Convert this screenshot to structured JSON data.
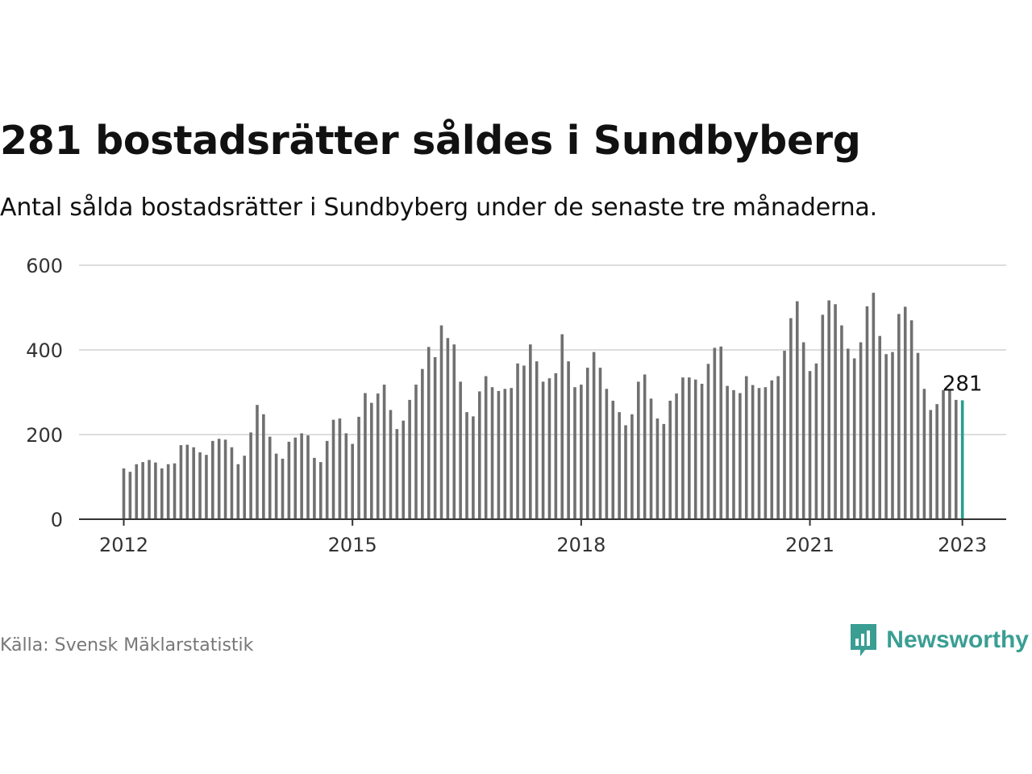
{
  "title": "281 bostadsrätter såldes i Sundbyberg",
  "subtitle": "Antal sålda bostadsrätter i Sundbyberg under de senaste tre månaderna.",
  "source": "Källa: Svensk Mäklarstatistik",
  "brand": {
    "name": "Newsworthy",
    "icon": "newsworthy-logo-icon",
    "color": "#3a9e93"
  },
  "colors": {
    "bar": "#707070",
    "highlight": "#2a9d8f",
    "grid": "#dddddd",
    "axis": "#333333"
  },
  "chart_data": {
    "type": "bar",
    "title": "281 bostadsrätter såldes i Sundbyberg",
    "subtitle": "Antal sålda bostadsrätter i Sundbyberg under de senaste tre månaderna.",
    "xlabel": "",
    "ylabel": "",
    "x_start": "2012-01",
    "x_ticks": [
      "2012",
      "2015",
      "2018",
      "2021",
      "2023"
    ],
    "y_ticks": [
      0,
      200,
      400,
      600
    ],
    "ylim": [
      0,
      600
    ],
    "grid": true,
    "highlight_last": true,
    "last_label": "281",
    "values": [
      120,
      112,
      130,
      135,
      140,
      134,
      120,
      130,
      132,
      175,
      176,
      170,
      158,
      152,
      185,
      190,
      188,
      170,
      130,
      150,
      205,
      270,
      248,
      195,
      155,
      143,
      183,
      193,
      203,
      198,
      145,
      135,
      185,
      235,
      238,
      203,
      178,
      242,
      298,
      275,
      297,
      318,
      258,
      213,
      233,
      282,
      318,
      355,
      407,
      383,
      458,
      428,
      413,
      325,
      253,
      243,
      302,
      338,
      312,
      303,
      308,
      310,
      368,
      363,
      413,
      373,
      325,
      333,
      345,
      437,
      373,
      312,
      318,
      358,
      395,
      358,
      308,
      280,
      253,
      222,
      248,
      325,
      342,
      285,
      238,
      225,
      280,
      297,
      335,
      335,
      330,
      320,
      367,
      405,
      408,
      315,
      305,
      298,
      338,
      317,
      310,
      312,
      328,
      338,
      398,
      475,
      515,
      418,
      350,
      368,
      483,
      517,
      508,
      458,
      403,
      380,
      418,
      503,
      535,
      433,
      390,
      395,
      485,
      502,
      470,
      393,
      308,
      258,
      272,
      305,
      305,
      282,
      281
    ]
  }
}
